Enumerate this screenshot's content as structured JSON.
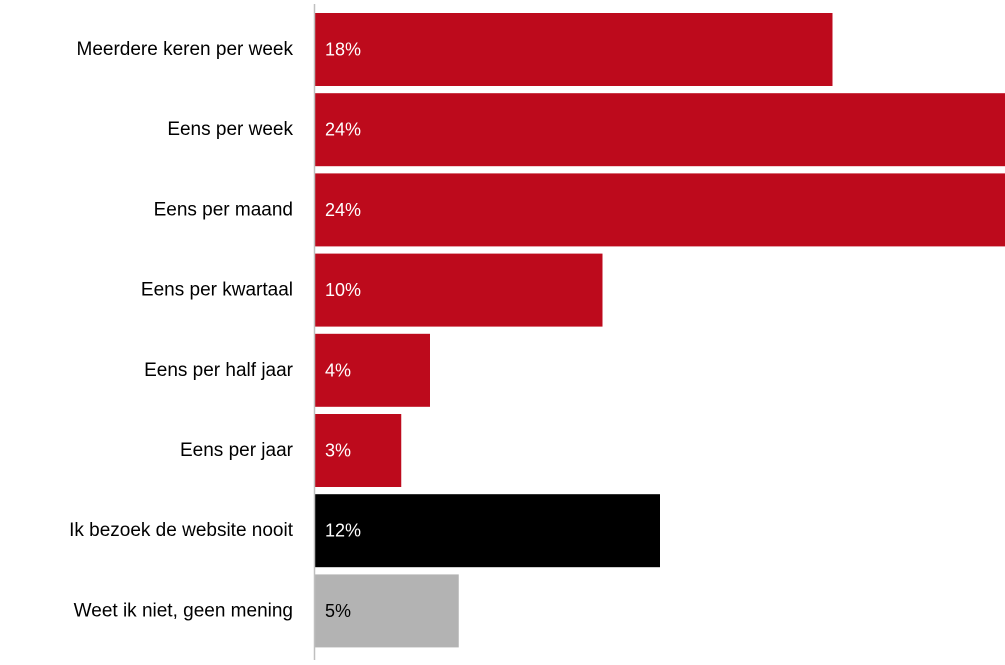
{
  "chart_data": {
    "type": "bar",
    "orientation": "horizontal",
    "title": "",
    "xlabel": "",
    "ylabel": "",
    "xlim": [
      0,
      24
    ],
    "grid": false,
    "legend": "none",
    "categories": [
      "Meerdere keren per week",
      "Eens per week",
      "Eens per maand",
      "Eens per kwartaal",
      "Eens per half jaar",
      "Eens per jaar",
      "Ik bezoek de website nooit",
      "Weet ik niet, geen mening"
    ],
    "values": [
      18,
      24,
      24,
      10,
      4,
      3,
      12,
      5
    ],
    "value_labels": [
      "18%",
      "24%",
      "24%",
      "10%",
      "4%",
      "3%",
      "12%",
      "5%"
    ],
    "colors": [
      "#bd0a1c",
      "#bd0a1c",
      "#bd0a1c",
      "#bd0a1c",
      "#bd0a1c",
      "#bd0a1c",
      "#000000",
      "#b3b3b3"
    ],
    "label_colors": [
      "#ffffff",
      "#ffffff",
      "#ffffff",
      "#ffffff",
      "#ffffff",
      "#ffffff",
      "#ffffff",
      "#000000"
    ],
    "axis_color": "#bfbfbf"
  }
}
